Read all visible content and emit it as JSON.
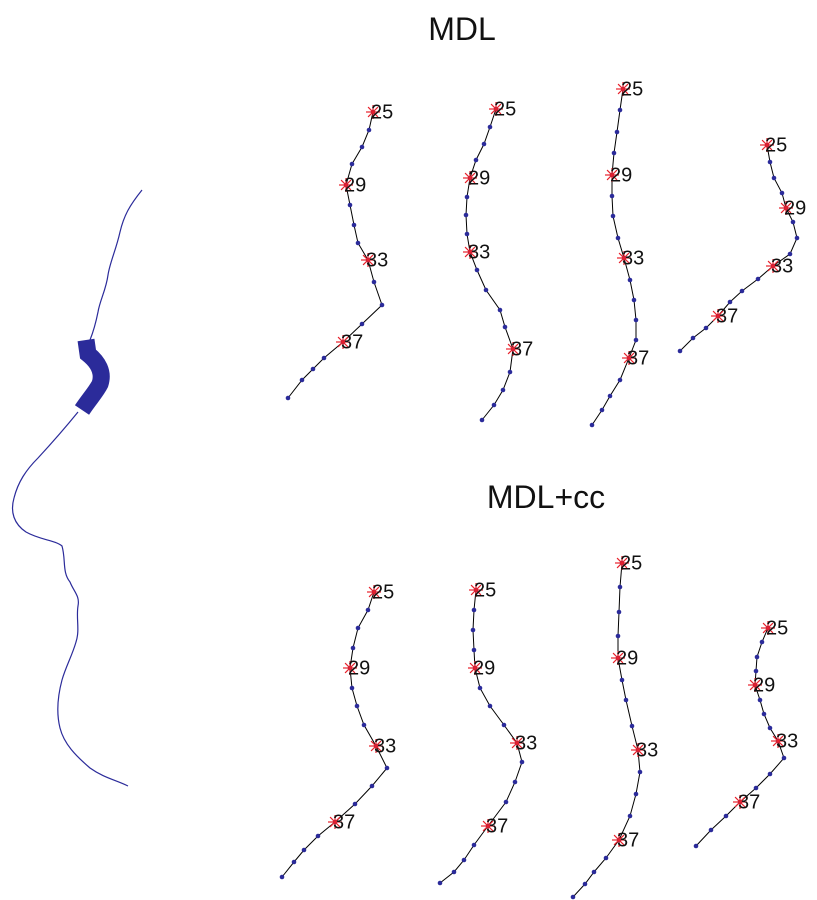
{
  "sections": [
    {
      "title": "MDL",
      "shapes": [
        {
          "labels": [
            "25",
            "29",
            "33",
            "37"
          ]
        },
        {
          "labels": [
            "25",
            "29",
            "33",
            "37"
          ]
        },
        {
          "labels": [
            "25",
            "29",
            "33",
            "37"
          ]
        },
        {
          "labels": [
            "25",
            "29",
            "33",
            "37"
          ]
        }
      ]
    },
    {
      "title": "MDL+cc",
      "shapes": [
        {
          "labels": [
            "25",
            "29",
            "33",
            "37"
          ]
        },
        {
          "labels": [
            "25",
            "29",
            "33",
            "37"
          ]
        },
        {
          "labels": [
            "25",
            "29",
            "33",
            "37"
          ]
        },
        {
          "labels": [
            "25",
            "29",
            "33",
            "37"
          ]
        }
      ]
    }
  ]
}
